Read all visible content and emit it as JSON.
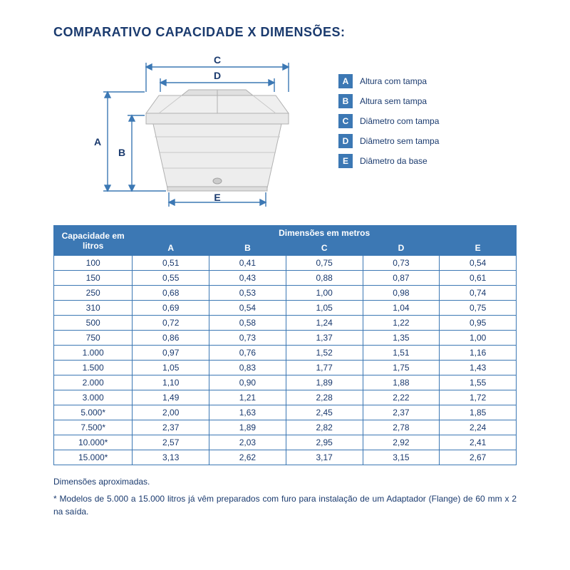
{
  "title": "COMPARATIVO CAPACIDADE X DIMENSÕES:",
  "palette": {
    "primary": "#3c78b4",
    "text": "#1a3a6e",
    "tank_fill": "#e8e8e8",
    "tank_stroke": "#b0b0b0",
    "bg": "#ffffff"
  },
  "diagram": {
    "labels": {
      "A": "A",
      "B": "B",
      "C": "C",
      "D": "D",
      "E": "E"
    }
  },
  "legend": [
    {
      "letter": "A",
      "text": "Altura com tampa"
    },
    {
      "letter": "B",
      "text": "Altura sem tampa"
    },
    {
      "letter": "C",
      "text": "Diâmetro com tampa"
    },
    {
      "letter": "D",
      "text": "Diâmetro sem tampa"
    },
    {
      "letter": "E",
      "text": "Diâmetro da base"
    }
  ],
  "table": {
    "corner_heading": "Capacidade em litros",
    "span_heading": "Dimensões em metros",
    "columns": [
      "A",
      "B",
      "C",
      "D",
      "E"
    ],
    "rows": [
      {
        "cap": "100",
        "v": [
          "0,51",
          "0,41",
          "0,75",
          "0,73",
          "0,54"
        ]
      },
      {
        "cap": "150",
        "v": [
          "0,55",
          "0,43",
          "0,88",
          "0,87",
          "0,61"
        ]
      },
      {
        "cap": "250",
        "v": [
          "0,68",
          "0,53",
          "1,00",
          "0,98",
          "0,74"
        ]
      },
      {
        "cap": "310",
        "v": [
          "0,69",
          "0,54",
          "1,05",
          "1,04",
          "0,75"
        ]
      },
      {
        "cap": "500",
        "v": [
          "0,72",
          "0,58",
          "1,24",
          "1,22",
          "0,95"
        ]
      },
      {
        "cap": "750",
        "v": [
          "0,86",
          "0,73",
          "1,37",
          "1,35",
          "1,00"
        ]
      },
      {
        "cap": "1.000",
        "v": [
          "0,97",
          "0,76",
          "1,52",
          "1,51",
          "1,16"
        ]
      },
      {
        "cap": "1.500",
        "v": [
          "1,05",
          "0,83",
          "1,77",
          "1,75",
          "1,43"
        ]
      },
      {
        "cap": "2.000",
        "v": [
          "1,10",
          "0,90",
          "1,89",
          "1,88",
          "1,55"
        ]
      },
      {
        "cap": "3.000",
        "v": [
          "1,49",
          "1,21",
          "2,28",
          "2,22",
          "1,72"
        ]
      },
      {
        "cap": "5.000*",
        "v": [
          "2,00",
          "1,63",
          "2,45",
          "2,37",
          "1,85"
        ]
      },
      {
        "cap": "7.500*",
        "v": [
          "2,37",
          "1,89",
          "2,82",
          "2,78",
          "2,24"
        ]
      },
      {
        "cap": "10.000*",
        "v": [
          "2,57",
          "2,03",
          "2,95",
          "2,92",
          "2,41"
        ]
      },
      {
        "cap": "15.000*",
        "v": [
          "3,13",
          "2,62",
          "3,17",
          "3,15",
          "2,67"
        ]
      }
    ]
  },
  "footnotes": [
    "Dimensões aproximadas.",
    "* Modelos de 5.000 a 15.000 litros já vêm preparados com furo para instalação de um Adaptador (Flange) de 60 mm x 2 na saída."
  ]
}
